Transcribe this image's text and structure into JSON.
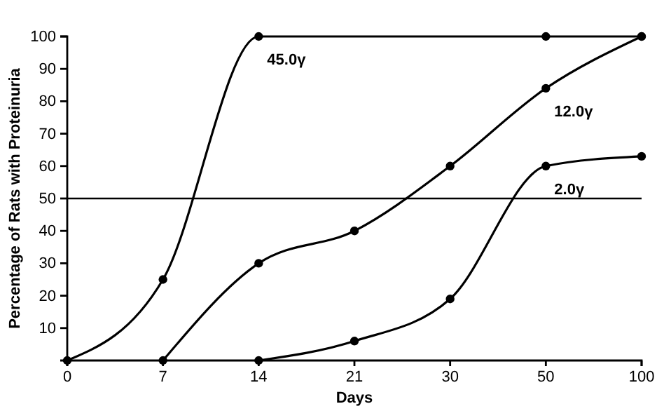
{
  "chart_data": {
    "type": "line",
    "xlabel": "Days",
    "ylabel": "Percentage of Rats with Proteinuria",
    "categories": [
      "0",
      "7",
      "14",
      "21",
      "30",
      "50",
      "100"
    ],
    "series": [
      {
        "name": "45.0γ",
        "color": "#000000",
        "values": [
          0,
          25,
          100,
          null,
          null,
          100,
          100
        ]
      },
      {
        "name": "12.0γ",
        "color": "#000000",
        "values": [
          null,
          0,
          30,
          40,
          60,
          84,
          100
        ]
      },
      {
        "name": "2.0γ",
        "color": "#000000",
        "values": [
          null,
          null,
          0,
          6,
          19,
          60,
          63
        ]
      }
    ],
    "ylim": [
      0,
      100
    ],
    "yticks": [
      10,
      20,
      30,
      40,
      50,
      60,
      70,
      80,
      90,
      100
    ],
    "ref_lines": [
      {
        "axis": "y",
        "value": 50,
        "color": "#000000"
      }
    ],
    "marker": "circle",
    "line_style": "solid",
    "grid": false,
    "legend": false
  }
}
